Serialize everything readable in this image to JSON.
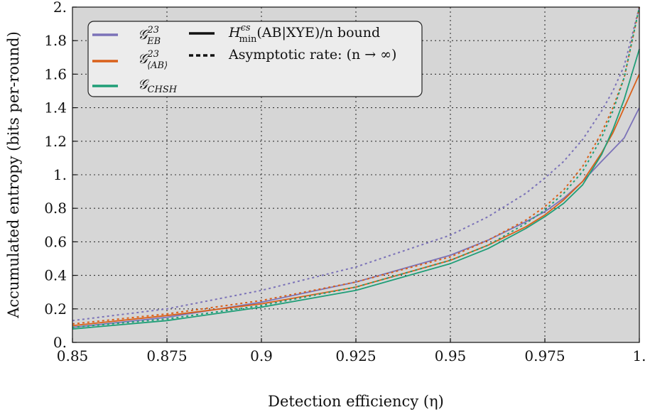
{
  "chart_data": {
    "type": "line",
    "xlabel": "Detection efficiency (η)",
    "ylabel": "Accumulated entropy (bits per-round)",
    "xlim": [
      0.85,
      1.0
    ],
    "ylim": [
      0.0,
      2.0
    ],
    "grid": true,
    "legend_placement": "top-left",
    "background": "#d6d6d6",
    "x_ticks": [
      0.85,
      0.875,
      0.9,
      0.925,
      0.95,
      0.975,
      1.0
    ],
    "x_tick_labels": [
      "0.85",
      "0.875",
      "0.9",
      "0.925",
      "0.95",
      "0.975",
      "1."
    ],
    "y_ticks": [
      0.0,
      0.2,
      0.4,
      0.6,
      0.8,
      1.0,
      1.2,
      1.4,
      1.6,
      1.8,
      2.0
    ],
    "y_tick_labels": [
      "0.",
      "0.2",
      "0.4",
      "0.6",
      "0.8",
      "1.",
      "1.2",
      "1.4",
      "1.6",
      "1.8",
      "2."
    ],
    "legend": {
      "games": [
        {
          "base": "𝒢",
          "sup": "23",
          "sub": "EB",
          "color": "#7b72b8"
        },
        {
          "base": "𝒢",
          "sup": "23",
          "sub": "⟨AB⟩",
          "color": "#d9601a"
        },
        {
          "base": "𝒢",
          "sup": "",
          "sub": "CHSH",
          "color": "#1f9e77"
        }
      ],
      "styles": [
        {
          "style": "solid",
          "pre": "H",
          "sup": "ϵs",
          "sub": "min",
          "text": "(AB|XYE)/n bound"
        },
        {
          "style": "dashed",
          "text": "Asymptotic rate: (n → ∞)"
        }
      ]
    },
    "x": [
      0.85,
      0.875,
      0.9,
      0.925,
      0.95,
      0.96,
      0.97,
      0.975,
      0.98,
      0.985,
      0.99,
      0.993,
      0.996,
      1.0
    ],
    "series": [
      {
        "game": "EB",
        "style": "solid",
        "color": "#7b72b8",
        "values": [
          0.09,
          0.15,
          0.24,
          0.36,
          0.52,
          0.61,
          0.72,
          0.78,
          0.86,
          0.96,
          1.08,
          1.15,
          1.22,
          1.4
        ]
      },
      {
        "game": "EB",
        "style": "dashed",
        "color": "#7b72b8",
        "values": [
          0.13,
          0.2,
          0.31,
          0.45,
          0.64,
          0.75,
          0.89,
          0.98,
          1.08,
          1.21,
          1.38,
          1.5,
          1.65,
          2.0
        ]
      },
      {
        "game": "AB",
        "style": "solid",
        "color": "#d9601a",
        "values": [
          0.1,
          0.16,
          0.23,
          0.33,
          0.49,
          0.58,
          0.69,
          0.76,
          0.85,
          0.96,
          1.13,
          1.25,
          1.4,
          1.6
        ]
      },
      {
        "game": "AB",
        "style": "dashed",
        "color": "#d9601a",
        "values": [
          0.11,
          0.17,
          0.25,
          0.36,
          0.51,
          0.61,
          0.73,
          0.81,
          0.91,
          1.05,
          1.25,
          1.4,
          1.58,
          2.0
        ]
      },
      {
        "game": "CHSH",
        "style": "solid",
        "color": "#1f9e77",
        "values": [
          0.08,
          0.13,
          0.21,
          0.31,
          0.47,
          0.56,
          0.68,
          0.75,
          0.83,
          0.94,
          1.12,
          1.27,
          1.45,
          1.75
        ]
      },
      {
        "game": "CHSH",
        "style": "dashed",
        "color": "#1f9e77",
        "values": [
          0.09,
          0.14,
          0.22,
          0.33,
          0.49,
          0.58,
          0.71,
          0.79,
          0.89,
          1.02,
          1.22,
          1.38,
          1.58,
          2.0
        ]
      }
    ]
  }
}
